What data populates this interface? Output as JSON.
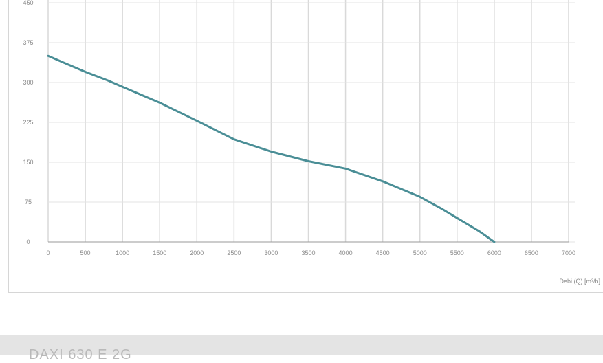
{
  "chart_data": {
    "type": "line",
    "title": "",
    "xlabel": "Debi (Q) [m³/h]",
    "ylabel": "",
    "xlim": [
      0,
      7000
    ],
    "ylim": [
      0,
      450
    ],
    "x_ticks": [
      "0",
      "500",
      "1000",
      "1500",
      "2000",
      "2500",
      "3000",
      "3500",
      "4000",
      "4500",
      "5000",
      "5500",
      "6000",
      "6500",
      "7000"
    ],
    "y_ticks": [
      "0",
      "75",
      "150",
      "225",
      "300",
      "375",
      "450"
    ],
    "grid": true,
    "line_color": "#4a8e96",
    "series": [
      {
        "name": "",
        "x": [
          0,
          200,
          500,
          800,
          1000,
          1500,
          2000,
          2500,
          3000,
          3500,
          4000,
          4500,
          5000,
          5300,
          5500,
          5800,
          6000
        ],
        "y": [
          350,
          338,
          320,
          304,
          292,
          262,
          228,
          193,
          170,
          152,
          138,
          114,
          85,
          62,
          45,
          20,
          0
        ]
      }
    ]
  },
  "footer": {
    "title": "DAXI 630 E 2G"
  }
}
